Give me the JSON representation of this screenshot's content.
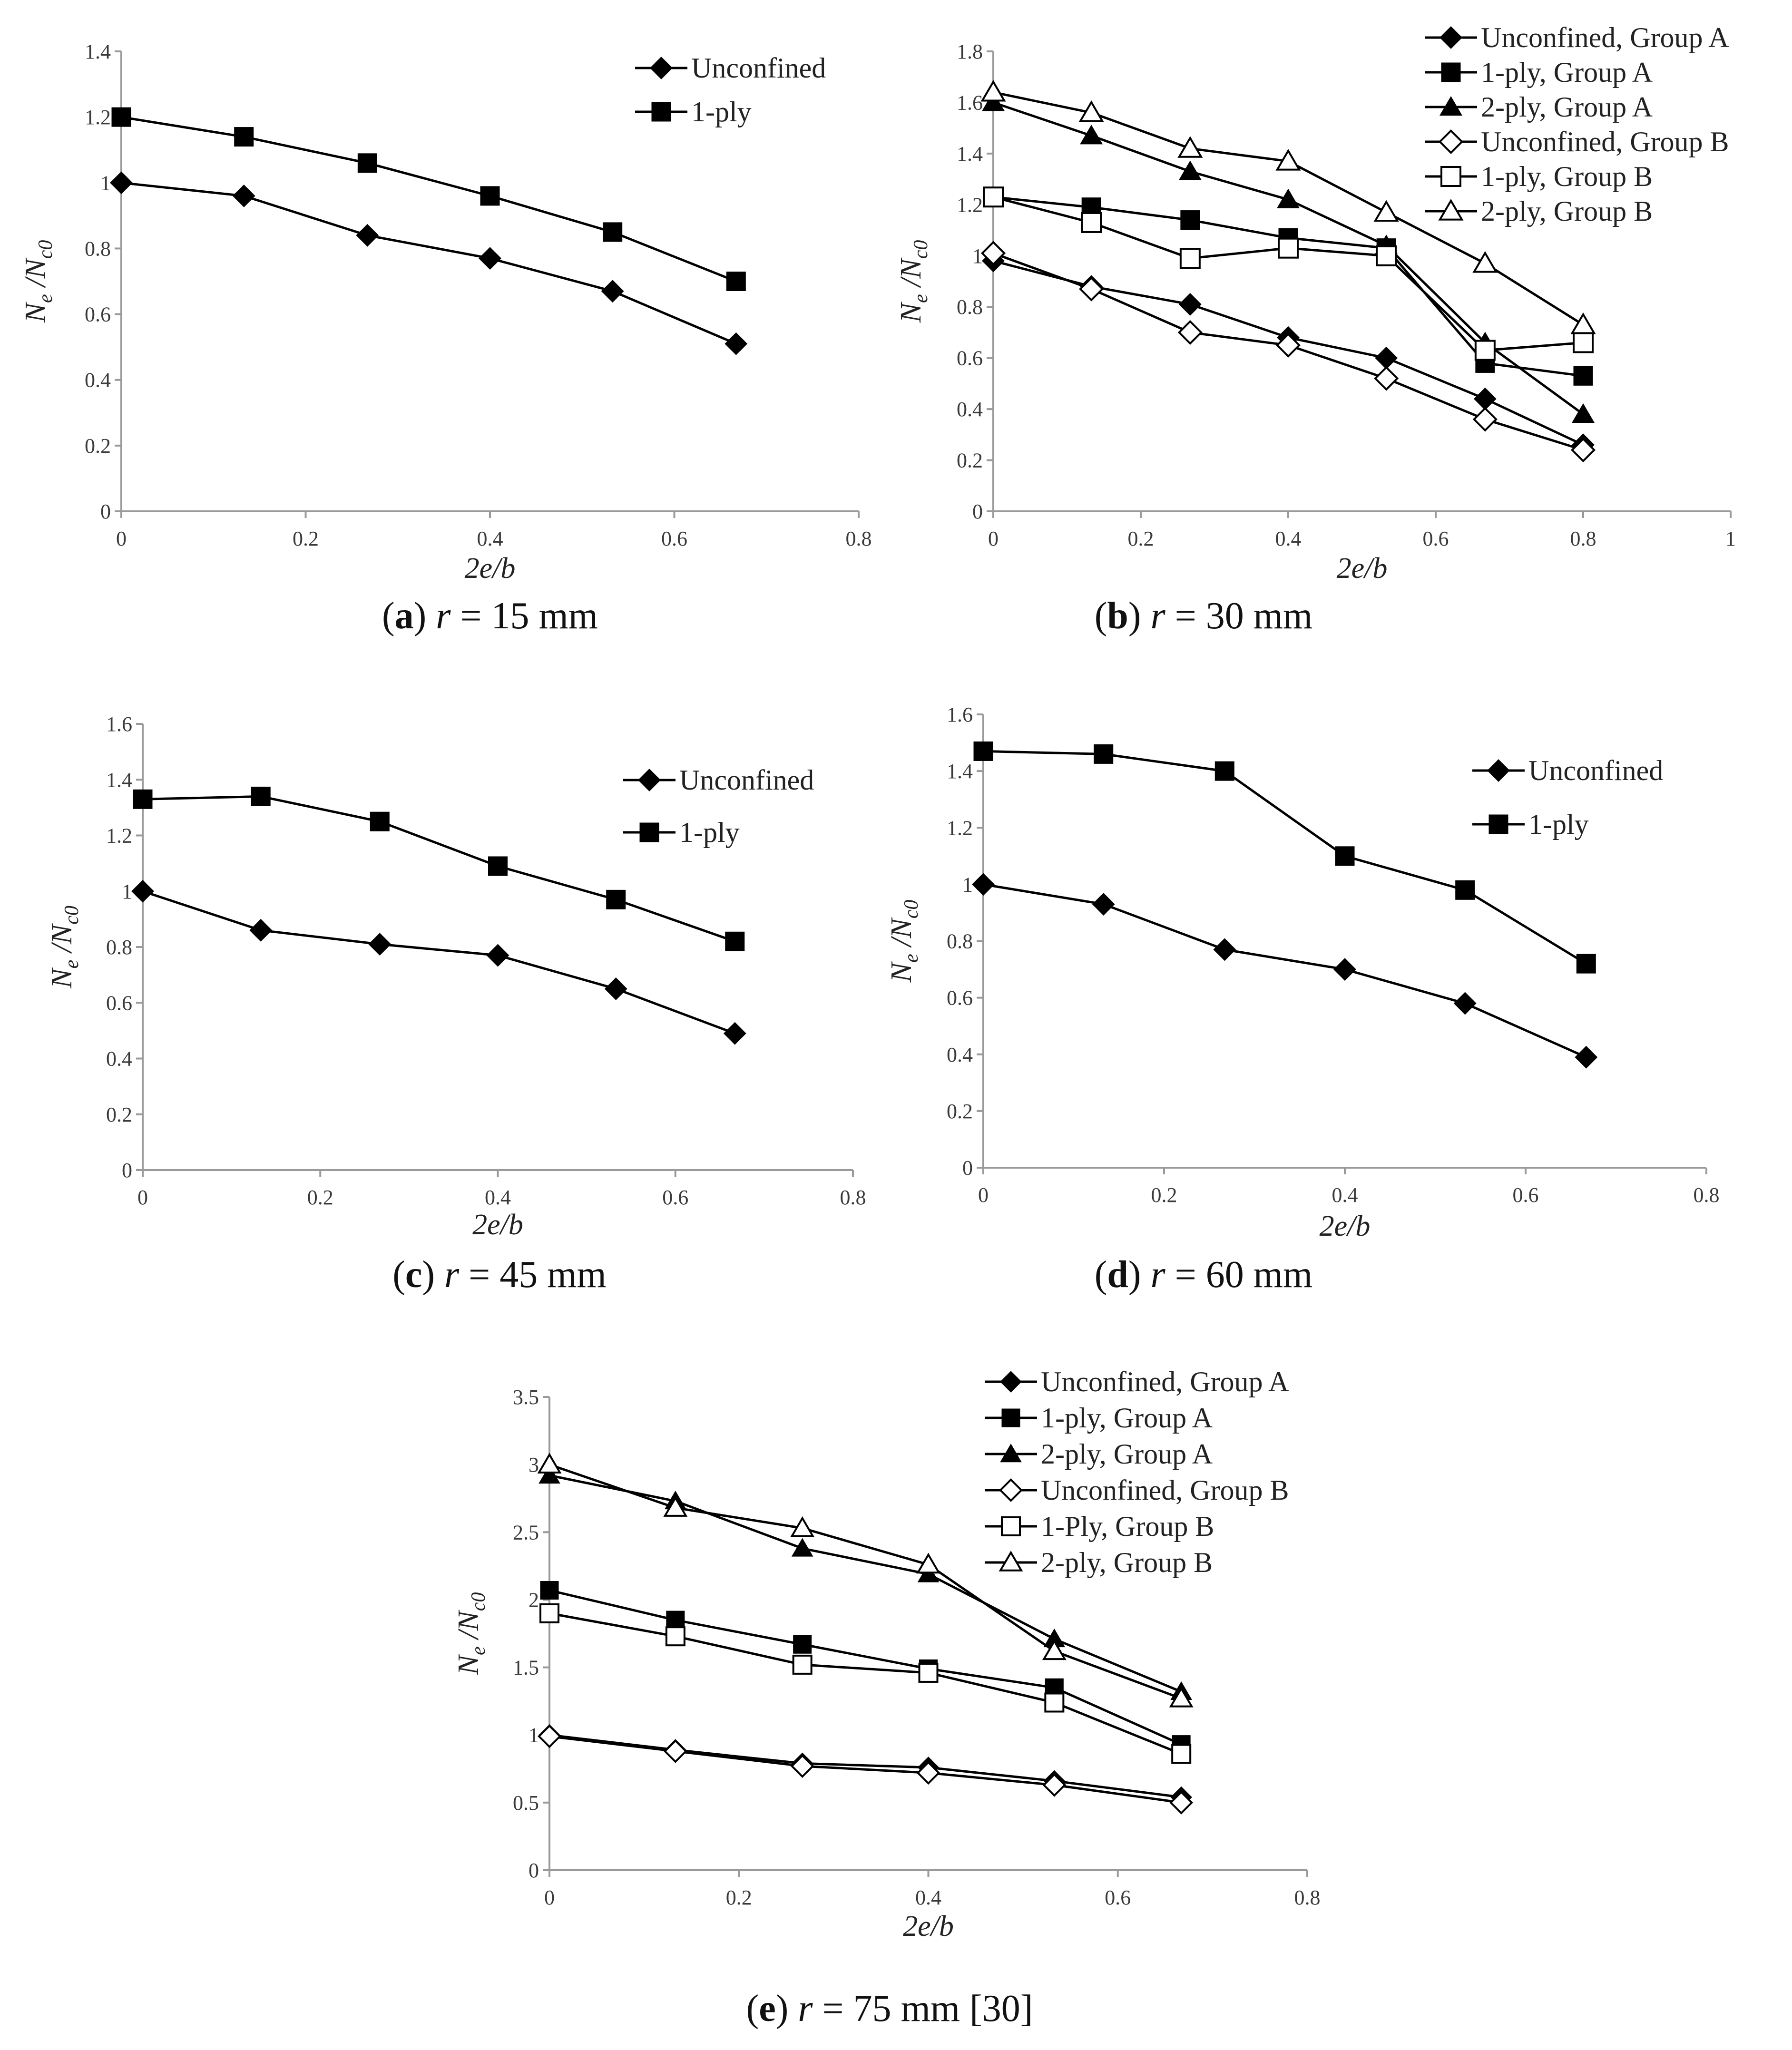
{
  "chart_data": [
    {
      "id": "a",
      "type": "line",
      "xlabel": "2e/b",
      "ylabel_main": "N",
      "ylabel_sub1": "e",
      "ylabel_sep": " /N",
      "ylabel_sub2": "c0",
      "xlim": [
        0,
        0.8
      ],
      "ylim": [
        0,
        1.4
      ],
      "xticks": [
        0,
        0.2,
        0.4,
        0.6,
        0.8
      ],
      "yticks": [
        0,
        0.2,
        0.4,
        0.6,
        0.8,
        1,
        1.2,
        1.4
      ],
      "legend_position": "top-right",
      "x": [
        0,
        0.133,
        0.267,
        0.4,
        0.533,
        0.667
      ],
      "series": [
        {
          "name": "Unconfined",
          "marker": "diamond-filled",
          "values": [
            1.0,
            0.96,
            0.84,
            0.77,
            0.67,
            0.51
          ]
        },
        {
          "name": "1-ply",
          "marker": "square-filled",
          "values": [
            1.2,
            1.14,
            1.06,
            0.96,
            0.85,
            0.7
          ]
        }
      ],
      "caption": {
        "letter": "a",
        "var": "r",
        "rest": " = 15 mm"
      }
    },
    {
      "id": "b",
      "type": "line",
      "xlabel": "2e/b",
      "ylabel_main": "N",
      "ylabel_sub1": "e",
      "ylabel_sep": " /N",
      "ylabel_sub2": "c0",
      "xlim": [
        0,
        1
      ],
      "ylim": [
        0,
        1.8
      ],
      "xticks": [
        0,
        0.2,
        0.4,
        0.6,
        0.8,
        1
      ],
      "yticks": [
        0,
        0.2,
        0.4,
        0.6,
        0.8,
        1,
        1.2,
        1.4,
        1.6,
        1.8
      ],
      "legend_position": "top-right",
      "x": [
        0,
        0.133,
        0.267,
        0.4,
        0.533,
        0.667,
        0.8
      ],
      "series": [
        {
          "name": "Unconfined, Group A",
          "marker": "diamond-filled",
          "values": [
            0.98,
            0.88,
            0.81,
            0.68,
            0.6,
            0.44,
            0.26
          ]
        },
        {
          "name": "1-ply, Group A",
          "marker": "square-filled",
          "values": [
            1.23,
            1.19,
            1.14,
            1.07,
            1.03,
            0.58,
            0.53
          ]
        },
        {
          "name": "2-ply, Group A",
          "marker": "triangle-filled",
          "values": [
            1.6,
            1.47,
            1.33,
            1.22,
            1.04,
            0.66,
            0.38
          ]
        },
        {
          "name": "Unconfined, Group B",
          "marker": "diamond-open",
          "values": [
            1.01,
            0.87,
            0.7,
            0.65,
            0.52,
            0.36,
            0.24
          ]
        },
        {
          "name": "1-ply, Group B",
          "marker": "square-open",
          "values": [
            1.23,
            1.13,
            0.99,
            1.03,
            1.0,
            0.63,
            0.66
          ]
        },
        {
          "name": "2-ply, Group B",
          "marker": "triangle-open",
          "values": [
            1.64,
            1.56,
            1.42,
            1.37,
            1.17,
            0.97,
            0.73
          ]
        }
      ],
      "caption": {
        "letter": "b",
        "var": "r",
        "rest": " = 30 mm"
      }
    },
    {
      "id": "c",
      "type": "line",
      "xlabel": "2e/b",
      "ylabel_main": "N",
      "ylabel_sub1": "e",
      "ylabel_sep": " /N",
      "ylabel_sub2": "c0",
      "xlim": [
        0,
        0.8
      ],
      "ylim": [
        0,
        1.6
      ],
      "xticks": [
        0,
        0.2,
        0.4,
        0.6,
        0.8
      ],
      "yticks": [
        0,
        0.2,
        0.4,
        0.6,
        0.8,
        1,
        1.2,
        1.4,
        1.6
      ],
      "legend_position": "top-right",
      "x": [
        0,
        0.133,
        0.267,
        0.4,
        0.533,
        0.667
      ],
      "series": [
        {
          "name": "Unconfined",
          "marker": "diamond-filled",
          "values": [
            1.0,
            0.86,
            0.81,
            0.77,
            0.65,
            0.49
          ]
        },
        {
          "name": "1-ply",
          "marker": "square-filled",
          "values": [
            1.33,
            1.34,
            1.25,
            1.09,
            0.97,
            0.82
          ]
        }
      ],
      "caption": {
        "letter": "c",
        "var": "r",
        "rest": " = 45 mm"
      }
    },
    {
      "id": "d",
      "type": "line",
      "xlabel": "2e/b",
      "ylabel_main": "N",
      "ylabel_sub1": "e",
      "ylabel_sep": " /N",
      "ylabel_sub2": "c0",
      "xlim": [
        0,
        0.8
      ],
      "ylim": [
        0,
        1.6
      ],
      "xticks": [
        0,
        0.2,
        0.4,
        0.6,
        0.8
      ],
      "yticks": [
        0,
        0.2,
        0.4,
        0.6,
        0.8,
        1,
        1.2,
        1.4,
        1.6
      ],
      "legend_position": "top-right",
      "x": [
        0,
        0.133,
        0.267,
        0.4,
        0.533,
        0.667
      ],
      "series": [
        {
          "name": "Unconfined",
          "marker": "diamond-filled",
          "values": [
            1.0,
            0.93,
            0.77,
            0.7,
            0.58,
            0.39
          ]
        },
        {
          "name": "1-ply",
          "marker": "square-filled",
          "values": [
            1.47,
            1.46,
            1.4,
            1.1,
            0.98,
            0.72
          ]
        }
      ],
      "caption": {
        "letter": "d",
        "var": "r",
        "rest": " = 60 mm"
      }
    },
    {
      "id": "e",
      "type": "line",
      "xlabel": "2e/b",
      "ylabel_main": "N",
      "ylabel_sub1": "e",
      "ylabel_sep": " /N",
      "ylabel_sub2": "c0",
      "xlim": [
        0,
        0.8
      ],
      "ylim": [
        0,
        3.5
      ],
      "xticks": [
        0,
        0.2,
        0.4,
        0.6,
        0.8
      ],
      "yticks": [
        0,
        0.5,
        1,
        1.5,
        2,
        2.5,
        3,
        3.5
      ],
      "legend_position": "top-right",
      "x": [
        0,
        0.133,
        0.267,
        0.4,
        0.533,
        0.667
      ],
      "series": [
        {
          "name": "Unconfined, Group A",
          "marker": "diamond-filled",
          "values": [
            1.0,
            0.89,
            0.79,
            0.76,
            0.66,
            0.54
          ]
        },
        {
          "name": "1-ply, Group A",
          "marker": "square-filled",
          "values": [
            2.07,
            1.85,
            1.67,
            1.49,
            1.35,
            0.93
          ]
        },
        {
          "name": "2-ply, Group A",
          "marker": "triangle-filled",
          "values": [
            2.92,
            2.73,
            2.38,
            2.19,
            1.71,
            1.32
          ]
        },
        {
          "name": "Unconfined, Group B",
          "marker": "diamond-open",
          "values": [
            0.99,
            0.88,
            0.77,
            0.72,
            0.63,
            0.5
          ]
        },
        {
          "name": "1-Ply, Group B",
          "marker": "square-open",
          "values": [
            1.9,
            1.73,
            1.52,
            1.46,
            1.24,
            0.86
          ]
        },
        {
          "name": "2-ply, Group B",
          "marker": "triangle-open",
          "values": [
            3.0,
            2.68,
            2.53,
            2.26,
            1.62,
            1.27
          ]
        }
      ],
      "caption": {
        "letter": "e",
        "var": "r",
        "rest": " = 75 mm [30]"
      }
    }
  ]
}
